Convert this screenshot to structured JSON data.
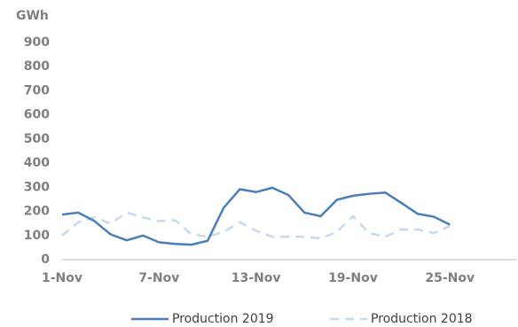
{
  "chart_data": {
    "type": "line",
    "y_label": "GWh",
    "categories": [
      "1-Nov",
      null,
      null,
      null,
      null,
      null,
      "7-Nov",
      null,
      null,
      null,
      null,
      null,
      "13-Nov",
      null,
      null,
      null,
      null,
      null,
      "19-Nov",
      null,
      null,
      null,
      null,
      null,
      "25-Nov",
      null,
      null,
      null,
      null,
      null
    ],
    "series": [
      {
        "name": "Production 2019",
        "color": "#4a7ebb",
        "line_style": "solid",
        "values": [
          187,
          195,
          160,
          105,
          80,
          100,
          72,
          65,
          62,
          78,
          215,
          292,
          280,
          298,
          268,
          195,
          180,
          248,
          265,
          273,
          278,
          235,
          190,
          178,
          145,
          null,
          null,
          null,
          null,
          null
        ]
      },
      {
        "name": "Production 2018",
        "color": "#c6d9f1",
        "line_style": "dashed",
        "values": [
          100,
          155,
          175,
          150,
          195,
          175,
          160,
          163,
          105,
          95,
          115,
          155,
          120,
          95,
          95,
          95,
          88,
          115,
          180,
          110,
          95,
          125,
          125,
          110,
          140,
          null,
          null,
          null,
          null,
          null
        ]
      }
    ],
    "ylim": [
      0,
      900
    ],
    "yticks": [
      0,
      100,
      200,
      300,
      400,
      500,
      600,
      700,
      800,
      900
    ],
    "grid": false,
    "legend": "bottom"
  }
}
